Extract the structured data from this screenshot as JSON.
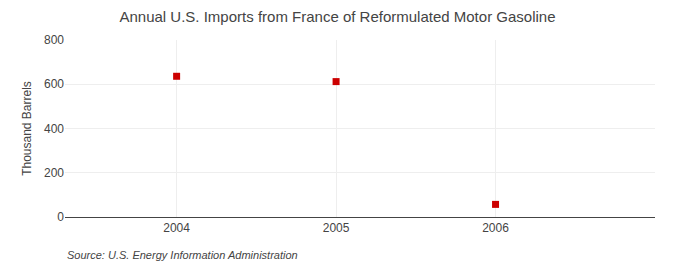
{
  "chart_data": {
    "type": "scatter",
    "title": "Annual U.S. Imports from France of Reformulated Motor Gasoline",
    "ylabel": "Thousand Barrels",
    "annotation": "Source: U.S. Energy Information Administration",
    "x": [
      2004,
      2005,
      2006
    ],
    "values": [
      636,
      612,
      57
    ],
    "color": "#cc0000",
    "marker": "square",
    "xlim": [
      2003.3,
      2007.0
    ],
    "xticks": [
      2004,
      2005,
      2006
    ],
    "ylim": [
      0,
      800
    ],
    "yticks": [
      0,
      200,
      400,
      600,
      800
    ],
    "grid": true
  }
}
